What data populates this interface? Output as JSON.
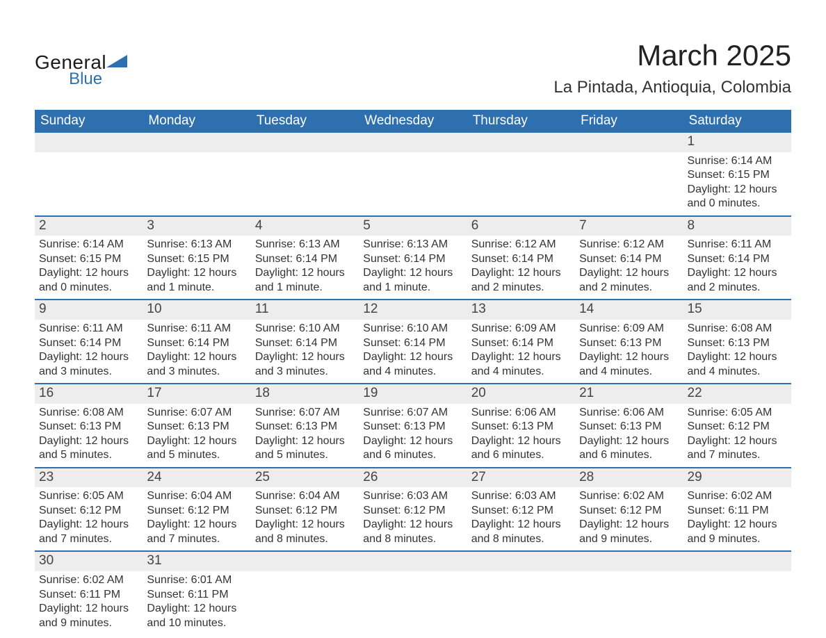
{
  "brand": {
    "top": "General",
    "bottom": "Blue",
    "mark_color": "#2e6fb0"
  },
  "title": "March 2025",
  "location": "La Pintada, Antioquia, Colombia",
  "colors": {
    "header_bg": "#2e6fb0",
    "header_text": "#ffffff",
    "row_sep": "#2e6fb0",
    "daynum_bg": "#ededed",
    "body_text": "#333333",
    "page_bg": "#ffffff"
  },
  "typography": {
    "font_family": "Arial",
    "title_fontsize": 42,
    "location_fontsize": 24,
    "weekday_fontsize": 19,
    "daynum_fontsize": 19,
    "cell_fontsize": 16
  },
  "weekdays": [
    "Sunday",
    "Monday",
    "Tuesday",
    "Wednesday",
    "Thursday",
    "Friday",
    "Saturday"
  ],
  "weeks": [
    [
      null,
      null,
      null,
      null,
      null,
      null,
      {
        "n": "1",
        "sunrise": "Sunrise: 6:14 AM",
        "sunset": "Sunset: 6:15 PM",
        "daylight": "Daylight: 12 hours and 0 minutes."
      }
    ],
    [
      {
        "n": "2",
        "sunrise": "Sunrise: 6:14 AM",
        "sunset": "Sunset: 6:15 PM",
        "daylight": "Daylight: 12 hours and 0 minutes."
      },
      {
        "n": "3",
        "sunrise": "Sunrise: 6:13 AM",
        "sunset": "Sunset: 6:15 PM",
        "daylight": "Daylight: 12 hours and 1 minute."
      },
      {
        "n": "4",
        "sunrise": "Sunrise: 6:13 AM",
        "sunset": "Sunset: 6:14 PM",
        "daylight": "Daylight: 12 hours and 1 minute."
      },
      {
        "n": "5",
        "sunrise": "Sunrise: 6:13 AM",
        "sunset": "Sunset: 6:14 PM",
        "daylight": "Daylight: 12 hours and 1 minute."
      },
      {
        "n": "6",
        "sunrise": "Sunrise: 6:12 AM",
        "sunset": "Sunset: 6:14 PM",
        "daylight": "Daylight: 12 hours and 2 minutes."
      },
      {
        "n": "7",
        "sunrise": "Sunrise: 6:12 AM",
        "sunset": "Sunset: 6:14 PM",
        "daylight": "Daylight: 12 hours and 2 minutes."
      },
      {
        "n": "8",
        "sunrise": "Sunrise: 6:11 AM",
        "sunset": "Sunset: 6:14 PM",
        "daylight": "Daylight: 12 hours and 2 minutes."
      }
    ],
    [
      {
        "n": "9",
        "sunrise": "Sunrise: 6:11 AM",
        "sunset": "Sunset: 6:14 PM",
        "daylight": "Daylight: 12 hours and 3 minutes."
      },
      {
        "n": "10",
        "sunrise": "Sunrise: 6:11 AM",
        "sunset": "Sunset: 6:14 PM",
        "daylight": "Daylight: 12 hours and 3 minutes."
      },
      {
        "n": "11",
        "sunrise": "Sunrise: 6:10 AM",
        "sunset": "Sunset: 6:14 PM",
        "daylight": "Daylight: 12 hours and 3 minutes."
      },
      {
        "n": "12",
        "sunrise": "Sunrise: 6:10 AM",
        "sunset": "Sunset: 6:14 PM",
        "daylight": "Daylight: 12 hours and 4 minutes."
      },
      {
        "n": "13",
        "sunrise": "Sunrise: 6:09 AM",
        "sunset": "Sunset: 6:14 PM",
        "daylight": "Daylight: 12 hours and 4 minutes."
      },
      {
        "n": "14",
        "sunrise": "Sunrise: 6:09 AM",
        "sunset": "Sunset: 6:13 PM",
        "daylight": "Daylight: 12 hours and 4 minutes."
      },
      {
        "n": "15",
        "sunrise": "Sunrise: 6:08 AM",
        "sunset": "Sunset: 6:13 PM",
        "daylight": "Daylight: 12 hours and 4 minutes."
      }
    ],
    [
      {
        "n": "16",
        "sunrise": "Sunrise: 6:08 AM",
        "sunset": "Sunset: 6:13 PM",
        "daylight": "Daylight: 12 hours and 5 minutes."
      },
      {
        "n": "17",
        "sunrise": "Sunrise: 6:07 AM",
        "sunset": "Sunset: 6:13 PM",
        "daylight": "Daylight: 12 hours and 5 minutes."
      },
      {
        "n": "18",
        "sunrise": "Sunrise: 6:07 AM",
        "sunset": "Sunset: 6:13 PM",
        "daylight": "Daylight: 12 hours and 5 minutes."
      },
      {
        "n": "19",
        "sunrise": "Sunrise: 6:07 AM",
        "sunset": "Sunset: 6:13 PM",
        "daylight": "Daylight: 12 hours and 6 minutes."
      },
      {
        "n": "20",
        "sunrise": "Sunrise: 6:06 AM",
        "sunset": "Sunset: 6:13 PM",
        "daylight": "Daylight: 12 hours and 6 minutes."
      },
      {
        "n": "21",
        "sunrise": "Sunrise: 6:06 AM",
        "sunset": "Sunset: 6:13 PM",
        "daylight": "Daylight: 12 hours and 6 minutes."
      },
      {
        "n": "22",
        "sunrise": "Sunrise: 6:05 AM",
        "sunset": "Sunset: 6:12 PM",
        "daylight": "Daylight: 12 hours and 7 minutes."
      }
    ],
    [
      {
        "n": "23",
        "sunrise": "Sunrise: 6:05 AM",
        "sunset": "Sunset: 6:12 PM",
        "daylight": "Daylight: 12 hours and 7 minutes."
      },
      {
        "n": "24",
        "sunrise": "Sunrise: 6:04 AM",
        "sunset": "Sunset: 6:12 PM",
        "daylight": "Daylight: 12 hours and 7 minutes."
      },
      {
        "n": "25",
        "sunrise": "Sunrise: 6:04 AM",
        "sunset": "Sunset: 6:12 PM",
        "daylight": "Daylight: 12 hours and 8 minutes."
      },
      {
        "n": "26",
        "sunrise": "Sunrise: 6:03 AM",
        "sunset": "Sunset: 6:12 PM",
        "daylight": "Daylight: 12 hours and 8 minutes."
      },
      {
        "n": "27",
        "sunrise": "Sunrise: 6:03 AM",
        "sunset": "Sunset: 6:12 PM",
        "daylight": "Daylight: 12 hours and 8 minutes."
      },
      {
        "n": "28",
        "sunrise": "Sunrise: 6:02 AM",
        "sunset": "Sunset: 6:12 PM",
        "daylight": "Daylight: 12 hours and 9 minutes."
      },
      {
        "n": "29",
        "sunrise": "Sunrise: 6:02 AM",
        "sunset": "Sunset: 6:11 PM",
        "daylight": "Daylight: 12 hours and 9 minutes."
      }
    ],
    [
      {
        "n": "30",
        "sunrise": "Sunrise: 6:02 AM",
        "sunset": "Sunset: 6:11 PM",
        "daylight": "Daylight: 12 hours and 9 minutes."
      },
      {
        "n": "31",
        "sunrise": "Sunrise: 6:01 AM",
        "sunset": "Sunset: 6:11 PM",
        "daylight": "Daylight: 12 hours and 10 minutes."
      },
      null,
      null,
      null,
      null,
      null
    ]
  ]
}
